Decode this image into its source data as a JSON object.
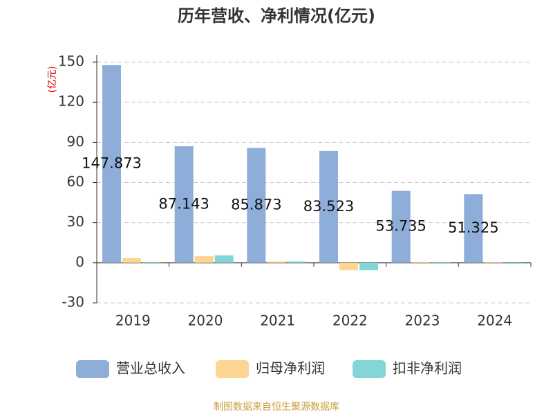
{
  "chart_data": {
    "type": "bar",
    "title": "历年营收、净利情况(亿元)",
    "y_label": "(亿元)",
    "categories": [
      "2019",
      "2020",
      "2021",
      "2022",
      "2023",
      "2024"
    ],
    "series": [
      {
        "name": "营业总收入",
        "color": "#8eadd9",
        "data_labels": true,
        "values": [
          147.873,
          87.143,
          85.873,
          83.523,
          53.735,
          51.325
        ]
      },
      {
        "name": "归母净利润",
        "color": "#fdd592",
        "data_labels": false,
        "values": [
          3.5,
          5.0,
          1.0,
          -5.5,
          0.5,
          0.3
        ]
      },
      {
        "name": "扣非净利润",
        "color": "#84d5d7",
        "data_labels": false,
        "values": [
          0.5,
          5.5,
          1.0,
          -5.5,
          0.5,
          -0.8
        ]
      }
    ],
    "ylim": [
      -30,
      150
    ],
    "yticks": [
      -30,
      0,
      30,
      60,
      90,
      120,
      150
    ],
    "grid": true,
    "source": "制图数据来自恒生聚源数据库"
  }
}
